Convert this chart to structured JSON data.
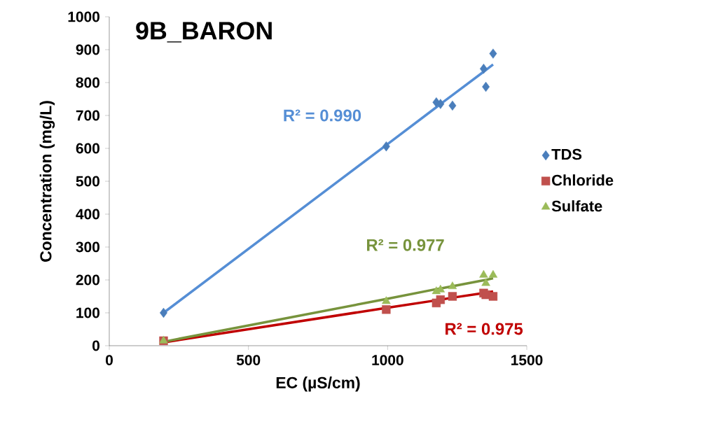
{
  "chart_data": {
    "type": "scatter",
    "title": "9B_BARON",
    "xlabel": "EC (µS/cm)",
    "ylabel": "Concentration (mg/L)",
    "xlim": [
      0,
      1500
    ],
    "xticks": [
      0,
      500,
      1000,
      1500
    ],
    "ylim": [
      0,
      1000
    ],
    "yticks": [
      0,
      100,
      200,
      300,
      400,
      500,
      600,
      700,
      800,
      900,
      1000
    ],
    "x": [
      195,
      995,
      1175,
      1190,
      1233,
      1345,
      1353,
      1379
    ],
    "series": [
      {
        "name": "TDS",
        "color": "#4a7ebb",
        "marker": "diamond",
        "values": [
          100,
          606,
          740,
          735,
          730,
          842,
          787,
          888
        ]
      },
      {
        "name": "Chloride",
        "color": "#c0504d",
        "marker": "square",
        "values": [
          15,
          110,
          130,
          140,
          150,
          160,
          155,
          150
        ]
      },
      {
        "name": "Sulfate",
        "color": "#9bbb59",
        "marker": "triangle",
        "values": [
          15,
          135,
          165,
          170,
          180,
          215,
          190,
          215
        ]
      },
      {
        "type": "line",
        "color": "#558ed5",
        "marker": "none",
        "values": [
          100,
          610,
          725,
          735,
          762,
          833,
          838,
          855
        ]
      },
      {
        "type": "line",
        "color": "#c00000",
        "marker": "none",
        "values": [
          10,
          115,
          138,
          140,
          146,
          160,
          161,
          165
        ]
      },
      {
        "type": "line",
        "color": "#77933c",
        "marker": "none",
        "values": [
          12,
          142,
          172,
          174,
          181,
          199,
          200,
          205
        ]
      }
    ],
    "annotations": [
      "R² = 0.990",
      "R² = 0.975",
      "R² = 0.977"
    ],
    "legend": "right",
    "grid": false
  }
}
